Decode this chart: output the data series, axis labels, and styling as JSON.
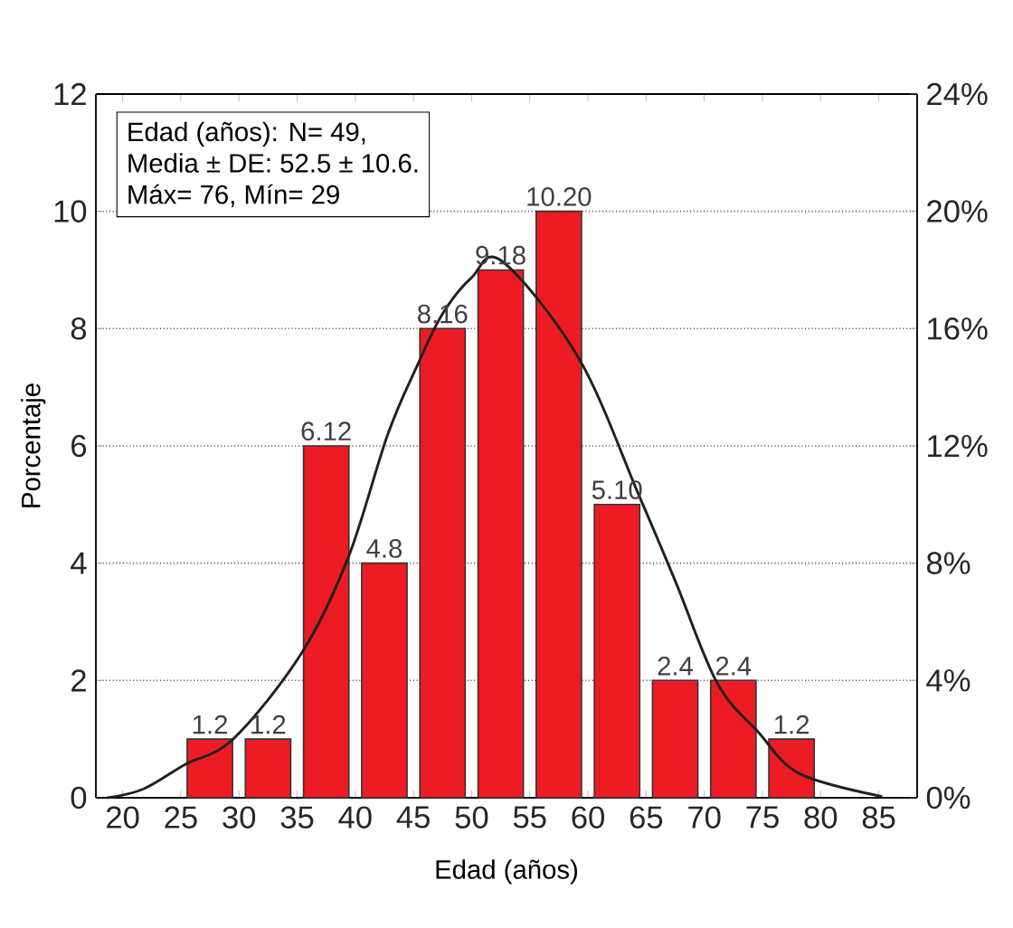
{
  "chart_data": {
    "type": "histogram",
    "xlabel": "Edad (años)",
    "ylabel": "Porcentaje",
    "series": [
      {
        "color": "#ed1c24",
        "bins": [
          25,
          30,
          35,
          40,
          45,
          50,
          55,
          60,
          65,
          70,
          75,
          80
        ],
        "values": [
          1,
          1,
          6,
          4,
          8,
          9,
          10,
          5,
          2,
          2,
          1
        ]
      },
      {
        "type": "line",
        "color": "#231f20",
        "x": [
          18.7,
          21.8,
          25.4,
          29.5,
          35.4,
          39.4,
          42.8,
          45.4,
          47.5,
          50,
          52.6,
          59.2,
          64.4,
          67.5,
          71.1,
          74.6,
          78.2,
          85.3
        ],
        "values": [
          0,
          0.15,
          0.57,
          1,
          2.47,
          4.1,
          6.2,
          7.4,
          8.25,
          8.87,
          9.15,
          7.5,
          5.15,
          3.7,
          1.96,
          1.13,
          0.41,
          0.02
        ]
      }
    ],
    "xlim": [
      17.7,
      88.3
    ],
    "xticks": [
      20,
      25,
      30,
      35,
      40,
      45,
      50,
      55,
      60,
      65,
      70,
      75,
      80,
      85
    ],
    "ylim": [
      0,
      12
    ],
    "yticks": [
      0,
      2,
      4,
      6,
      8,
      10,
      12
    ],
    "y2lim": [
      0,
      24
    ],
    "y2ticks": [
      {
        "value": 0,
        "label": "0%"
      },
      {
        "value": 4,
        "label": "4%"
      },
      {
        "value": 8,
        "label": "8%"
      },
      {
        "value": 12,
        "label": "12%"
      },
      {
        "value": 16,
        "label": "16%"
      },
      {
        "value": 20,
        "label": "20%"
      },
      {
        "value": 24,
        "label": "24%"
      }
    ],
    "grid": "y",
    "annotations": [
      "Edad (años): N= 49,",
      "Media ± DE: 52.5 ± 10.6.",
      "Máx= 76, Mín= 29",
      {
        "text": "1.2",
        "x": 27.5,
        "y": 1
      },
      {
        "text": "1.2",
        "x": 32.5,
        "y": 1
      },
      {
        "text": "6.12",
        "x": 37.5,
        "y": 6
      },
      {
        "text": "4.8",
        "x": 42.5,
        "y": 4
      },
      {
        "text": "8.16",
        "x": 47.5,
        "y": 8
      },
      {
        "text": "9.18",
        "x": 52.5,
        "y": 9
      },
      {
        "text": "10.20",
        "x": 57.5,
        "y": 10
      },
      {
        "text": "5.10",
        "x": 62.5,
        "y": 5
      },
      {
        "text": "2.4",
        "x": 67.5,
        "y": 2
      },
      {
        "text": "2.4",
        "x": 72.5,
        "y": 2
      },
      {
        "text": "1.2",
        "x": 77.5,
        "y": 1
      }
    ]
  }
}
